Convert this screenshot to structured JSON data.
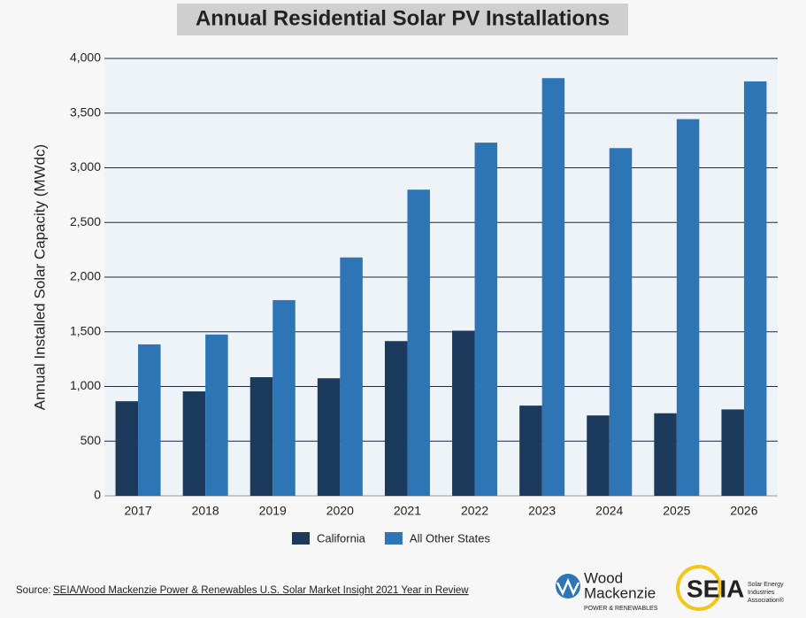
{
  "chart_data": {
    "type": "bar",
    "title": "Annual Residential Solar PV Installations",
    "ylabel": "Annual Installed Solar Capacity (MWdc)",
    "categories": [
      "2017",
      "2018",
      "2019",
      "2020",
      "2021",
      "2022",
      "2023",
      "2024",
      "2025",
      "2026"
    ],
    "series": [
      {
        "name": "California",
        "color": "#1b3a5c",
        "values": [
          865,
          955,
          1085,
          1075,
          1415,
          1510,
          825,
          735,
          755,
          790
        ]
      },
      {
        "name": "All Other States",
        "color": "#2e75b6",
        "values": [
          1385,
          1475,
          1790,
          2180,
          2800,
          3230,
          3820,
          3180,
          3445,
          3790
        ]
      }
    ],
    "ylim": [
      0,
      4000
    ],
    "yticks": [
      0,
      500,
      {
        "value": 1000,
        "label": "1,000"
      },
      {
        "value": 1500,
        "label": "1,500"
      },
      {
        "value": 2000,
        "label": "2,000"
      },
      {
        "value": 2500,
        "label": "2,500"
      },
      {
        "value": 3000,
        "label": "3,000"
      },
      {
        "value": 3500,
        "label": "3,500"
      },
      {
        "value": 4000,
        "label": "4,000"
      }
    ],
    "grid": true,
    "legend": "bottom"
  },
  "source": {
    "prefix": "Source:",
    "link": "SEIA/Wood Mackenzie Power & Renewables U.S. Solar Market Insight 2021 Year in Review"
  },
  "logos": {
    "wood": "Wood",
    "mackenzie": "Mackenzie",
    "power": "POWER & RENEWABLES",
    "seia": "SEIA",
    "seia_line1": "Solar Energy",
    "seia_line2": "Industries",
    "seia_line3": "Association®"
  }
}
